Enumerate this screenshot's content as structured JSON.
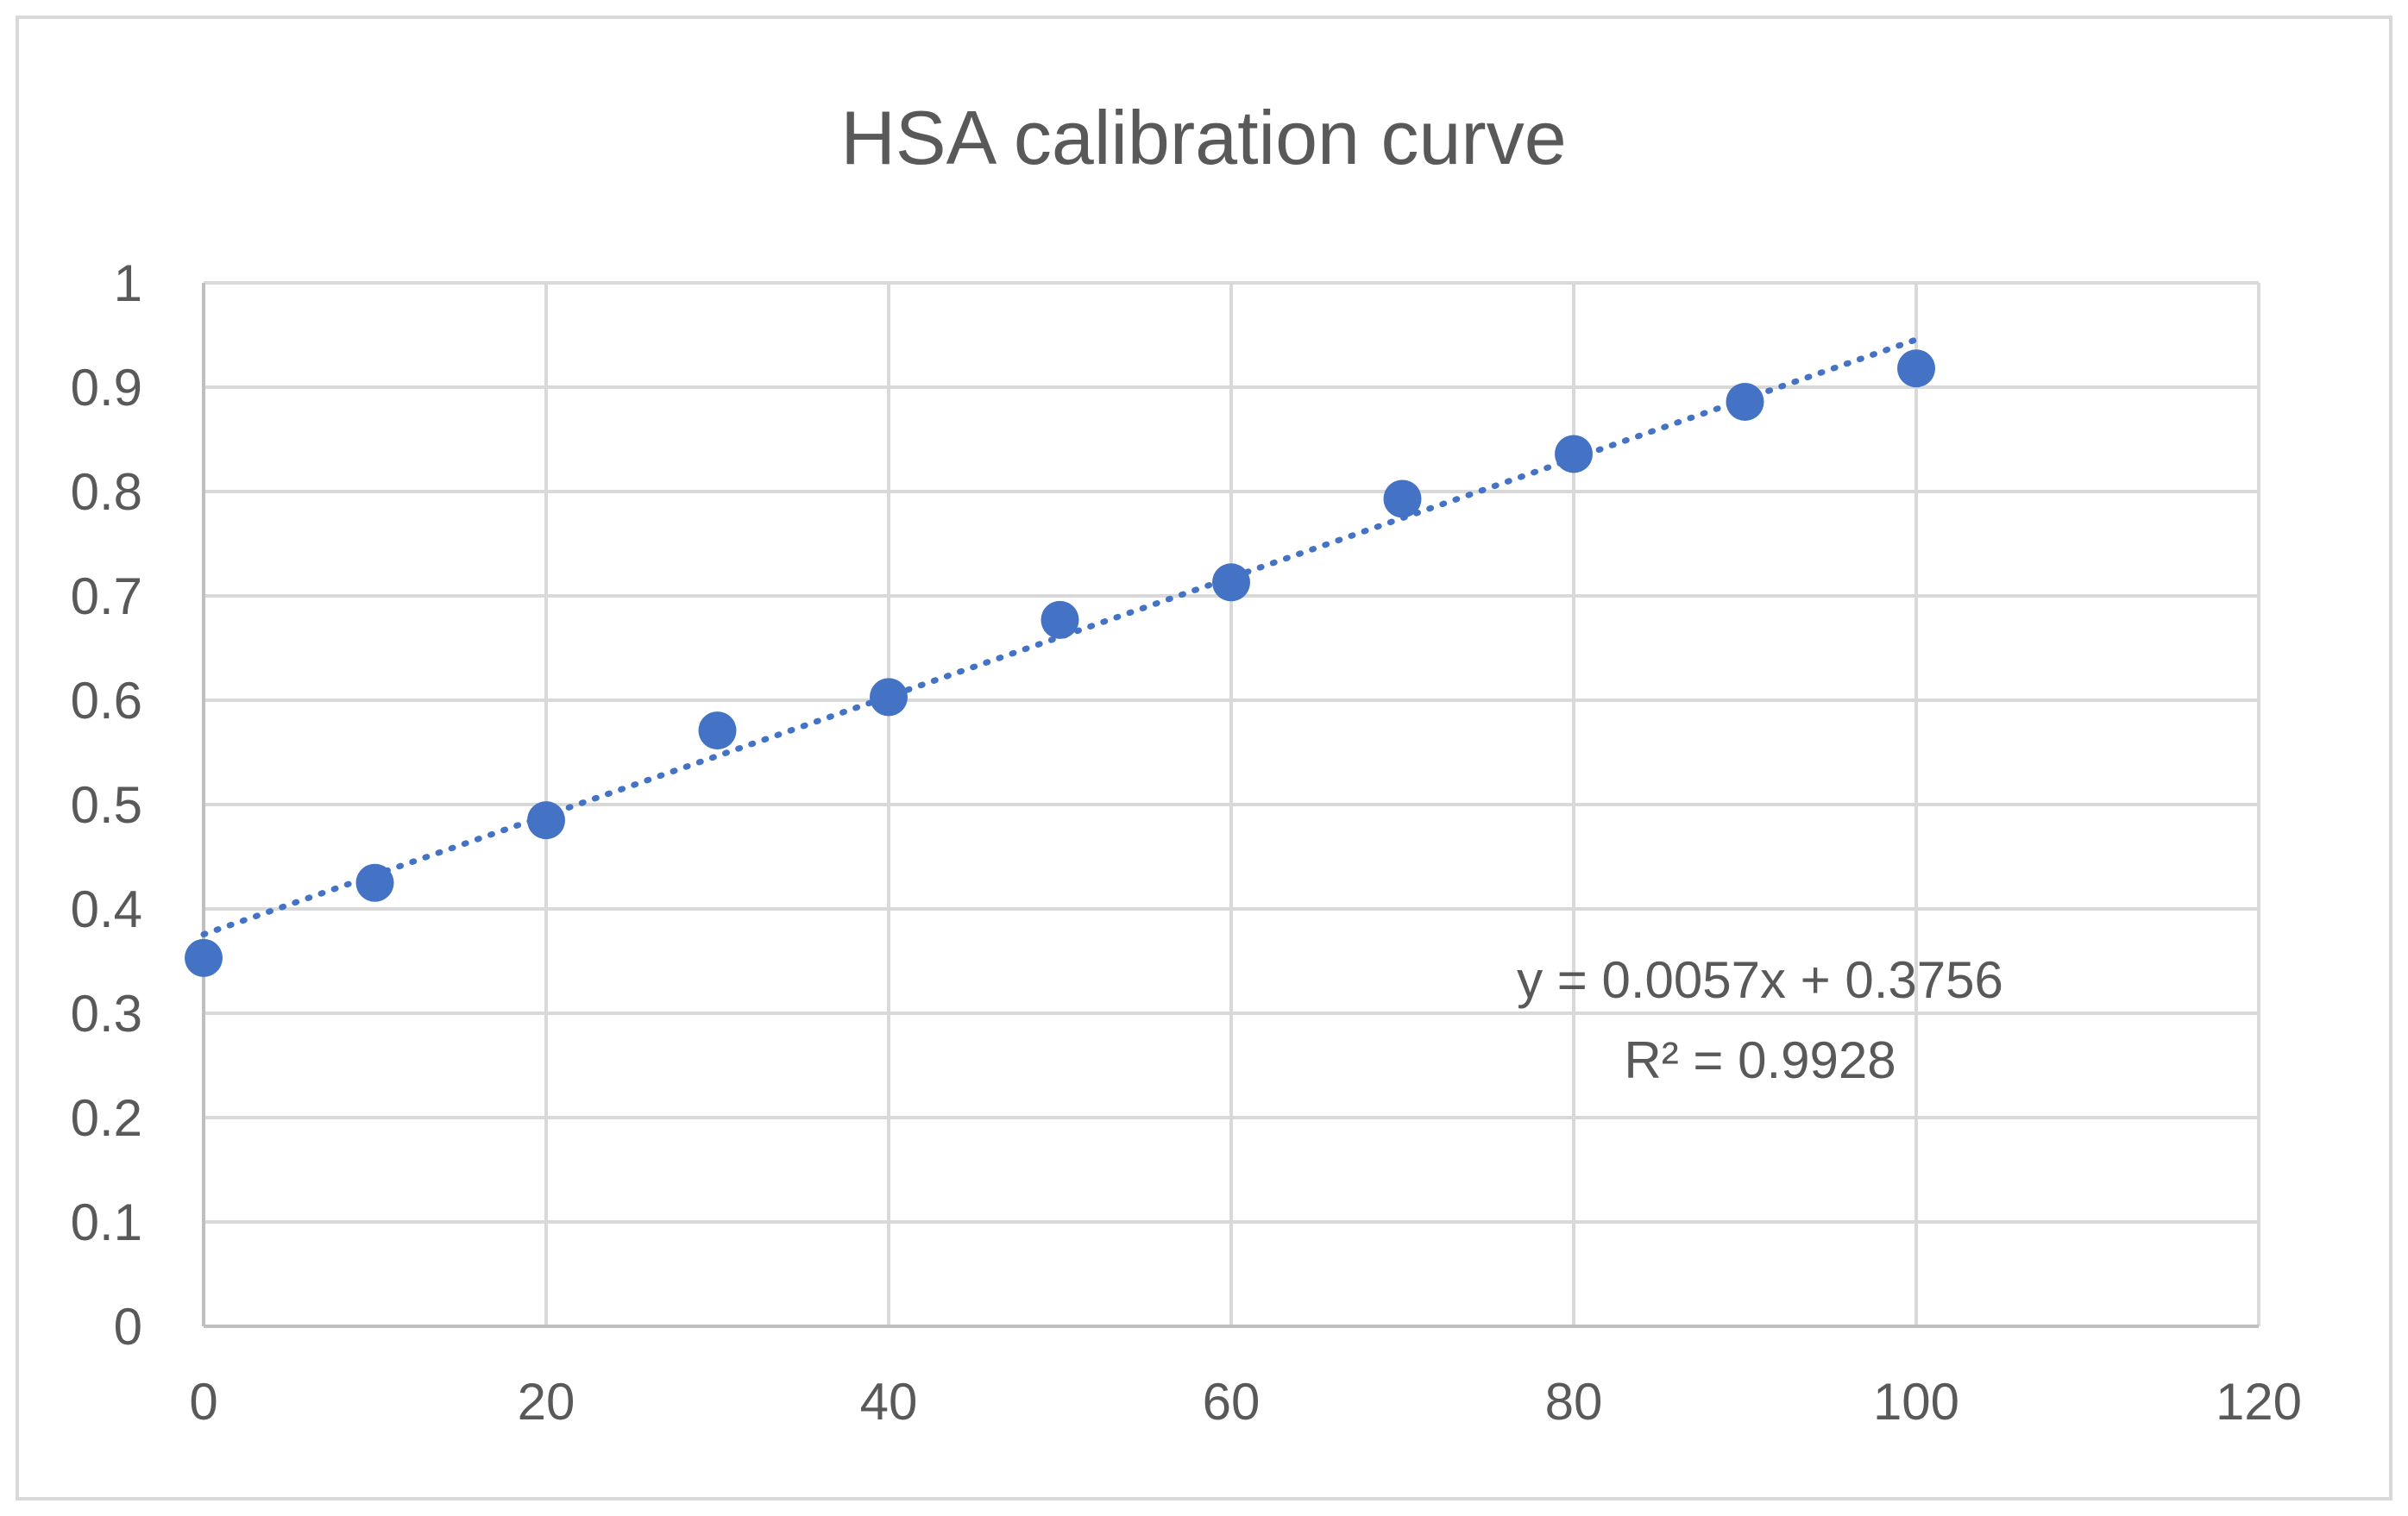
{
  "chart_data": {
    "type": "scatter",
    "title": "HSA calibration curve",
    "xlabel": "",
    "ylabel": "",
    "xlim": [
      0,
      120
    ],
    "ylim": [
      0,
      1
    ],
    "x_ticks": [
      0,
      20,
      40,
      60,
      80,
      100,
      120
    ],
    "y_ticks": [
      0,
      0.1,
      0.2,
      0.3,
      0.4,
      0.5,
      0.6,
      0.7,
      0.8,
      0.9,
      1
    ],
    "x_tick_labels": [
      "0",
      "20",
      "40",
      "60",
      "80",
      "100",
      "120"
    ],
    "y_tick_labels": [
      "0",
      "0.1",
      "0.2",
      "0.3",
      "0.4",
      "0.5",
      "0.6",
      "0.7",
      "0.8",
      "0.9",
      "1"
    ],
    "grid": true,
    "legend": "none",
    "series": [
      {
        "x": [
          0,
          10,
          20,
          30,
          40,
          50,
          60,
          70,
          80,
          90,
          100
        ],
        "y": [
          0.353,
          0.425,
          0.485,
          0.571,
          0.603,
          0.677,
          0.713,
          0.793,
          0.836,
          0.886,
          0.918
        ],
        "color": "#4472c4",
        "marker": "circle"
      }
    ],
    "trendline": {
      "type": "linear",
      "slope": 0.0057,
      "intercept": 0.3756,
      "x_range": [
        0,
        100
      ],
      "style": "dotted",
      "color": "#4472c4",
      "equation_label": "y = 0.0057x + 0.3756",
      "r2_label": "R² = 0.9928"
    },
    "colors": {
      "marker": "#4472c4",
      "grid": "#d9d9d9",
      "text": "#595959"
    }
  }
}
